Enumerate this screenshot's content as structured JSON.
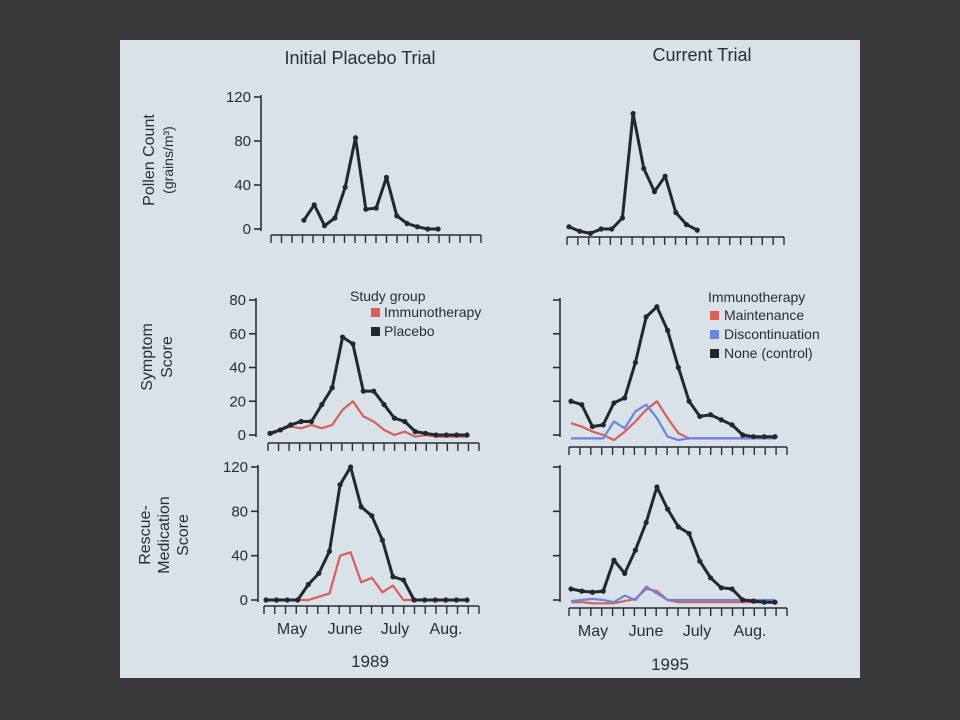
{
  "columns": {
    "left_title": "Initial Placebo Trial",
    "right_title": "Current Trial",
    "left_year": "1989",
    "right_year": "1995"
  },
  "row_labels": {
    "pollen": [
      "Pollen Count",
      "(grains/m³)"
    ],
    "symptom": [
      "Symptom",
      "Score"
    ],
    "rescue": [
      "Rescue-",
      "Medication",
      "Score"
    ]
  },
  "month_labels": [
    "May",
    "June",
    "July",
    "Aug."
  ],
  "legends": {
    "left_title": "Study group",
    "left": [
      {
        "label": "Immunotherapy",
        "color": "#d9605a"
      },
      {
        "label": "Placebo",
        "color": "#22282c"
      }
    ],
    "right_title": "Immunotherapy",
    "right": [
      {
        "label": "Maintenance",
        "color": "#d9605a"
      },
      {
        "label": "Discontinuation",
        "color": "#6d84dc"
      },
      {
        "label": "None (control)",
        "color": "#22282c"
      }
    ]
  },
  "colors": {
    "placebo": "#22282c",
    "immunotherapy": "#d9605a",
    "discontinuation": "#6d84dc",
    "axis": "#2a2e36"
  },
  "chart_data": [
    {
      "id": "pollen-1989",
      "type": "line",
      "panel": "left-top",
      "ylim": [
        0,
        120
      ],
      "yticks": [
        0,
        40,
        80,
        120
      ],
      "x_slots": 20,
      "series": [
        {
          "color": "#22282c",
          "marker": true,
          "x_start": 3,
          "values": [
            8,
            22,
            3,
            10,
            38,
            83,
            18,
            19,
            47,
            12,
            5,
            2,
            0,
            0
          ]
        }
      ]
    },
    {
      "id": "pollen-1995",
      "type": "line",
      "panel": "right-top",
      "ylim": [
        0,
        120
      ],
      "yticks": [
        0,
        40,
        80,
        120
      ],
      "x_slots": 20,
      "series": [
        {
          "color": "#22282c",
          "marker": true,
          "x_start": 0,
          "values": [
            2,
            -2,
            -4,
            0,
            0,
            10,
            105,
            55,
            34,
            48,
            15,
            4,
            -1
          ]
        }
      ]
    },
    {
      "id": "symptom-1989",
      "type": "line",
      "panel": "left-middle",
      "ylim": [
        0,
        80
      ],
      "yticks": [
        0,
        20,
        40,
        60,
        80
      ],
      "x_slots": 20,
      "series": [
        {
          "name": "Placebo",
          "color": "#22282c",
          "marker": true,
          "x_start": 0,
          "values": [
            1,
            3,
            6,
            8,
            8,
            18,
            28,
            58,
            54,
            26,
            26,
            18,
            10,
            8,
            2,
            1,
            0,
            0,
            0,
            0
          ]
        },
        {
          "name": "Immunotherapy",
          "color": "#d9605a",
          "marker": false,
          "x_start": 0,
          "values": [
            0,
            3,
            5,
            4,
            6,
            4,
            6,
            15,
            20,
            11,
            8,
            3,
            0,
            2,
            -1,
            0,
            -1,
            -1,
            -1,
            -1
          ]
        }
      ]
    },
    {
      "id": "symptom-1995",
      "type": "line",
      "panel": "right-middle",
      "ylim": [
        0,
        80
      ],
      "yticks": [
        0,
        20,
        40,
        60,
        80
      ],
      "x_slots": 20,
      "series": [
        {
          "name": "None (control)",
          "color": "#22282c",
          "marker": true,
          "x_start": 0,
          "values": [
            20,
            18,
            5,
            6,
            19,
            22,
            43,
            70,
            76,
            62,
            40,
            20,
            11,
            12,
            9,
            6,
            0,
            -1,
            -1,
            -1
          ]
        },
        {
          "name": "Maintenance",
          "color": "#d9605a",
          "marker": false,
          "x_start": 0,
          "values": [
            7,
            5,
            2,
            0,
            -3,
            2,
            8,
            15,
            20,
            10,
            1,
            -2,
            -2,
            -2,
            -2,
            -2,
            -2,
            -2,
            -2,
            -2
          ]
        },
        {
          "name": "Discontinuation",
          "color": "#6d84dc",
          "marker": false,
          "x_start": 0,
          "values": [
            -2,
            -2,
            -2,
            -2,
            8,
            4,
            14,
            18,
            10,
            -1,
            -3,
            -2,
            -2,
            -2,
            -2,
            -2,
            -2,
            -2,
            -2,
            -2
          ]
        }
      ]
    },
    {
      "id": "rescue-1989",
      "type": "line",
      "panel": "left-bottom",
      "ylim": [
        0,
        120
      ],
      "yticks": [
        0,
        40,
        80,
        120
      ],
      "x_slots": 20,
      "series": [
        {
          "name": "Placebo",
          "color": "#22282c",
          "marker": true,
          "x_start": 0,
          "values": [
            0,
            0,
            0,
            0,
            14,
            24,
            44,
            104,
            120,
            84,
            76,
            54,
            21,
            18,
            0,
            0,
            0,
            0,
            0,
            0
          ]
        },
        {
          "name": "Immunotherapy",
          "color": "#d9605a",
          "marker": false,
          "x_start": 0,
          "values": [
            0,
            0,
            0,
            0,
            0,
            3,
            6,
            40,
            43,
            16,
            20,
            7,
            13,
            0,
            0,
            0,
            0,
            0,
            0,
            0
          ]
        }
      ]
    },
    {
      "id": "rescue-1995",
      "type": "line",
      "panel": "right-bottom",
      "ylim": [
        0,
        120
      ],
      "yticks": [
        0,
        40,
        80,
        120
      ],
      "x_slots": 20,
      "series": [
        {
          "name": "None (control)",
          "color": "#22282c",
          "marker": true,
          "x_start": 0,
          "values": [
            10,
            8,
            7,
            8,
            36,
            24,
            45,
            70,
            102,
            82,
            66,
            60,
            35,
            20,
            11,
            10,
            0,
            -1,
            -2,
            -2
          ]
        },
        {
          "name": "Maintenance",
          "color": "#d9605a",
          "marker": false,
          "x_start": 0,
          "values": [
            -2,
            -2,
            -3,
            -3,
            -3,
            -1,
            1,
            10,
            8,
            0,
            -2,
            -2,
            -2,
            -2,
            -2,
            -2,
            -2,
            -2,
            -2,
            -2
          ]
        },
        {
          "name": "Discontinuation",
          "color": "#6d84dc",
          "marker": false,
          "x_start": 0,
          "values": [
            -1,
            0,
            1,
            0,
            -2,
            4,
            0,
            12,
            6,
            0,
            0,
            0,
            0,
            0,
            0,
            0,
            0,
            0,
            0,
            0
          ]
        }
      ]
    }
  ]
}
